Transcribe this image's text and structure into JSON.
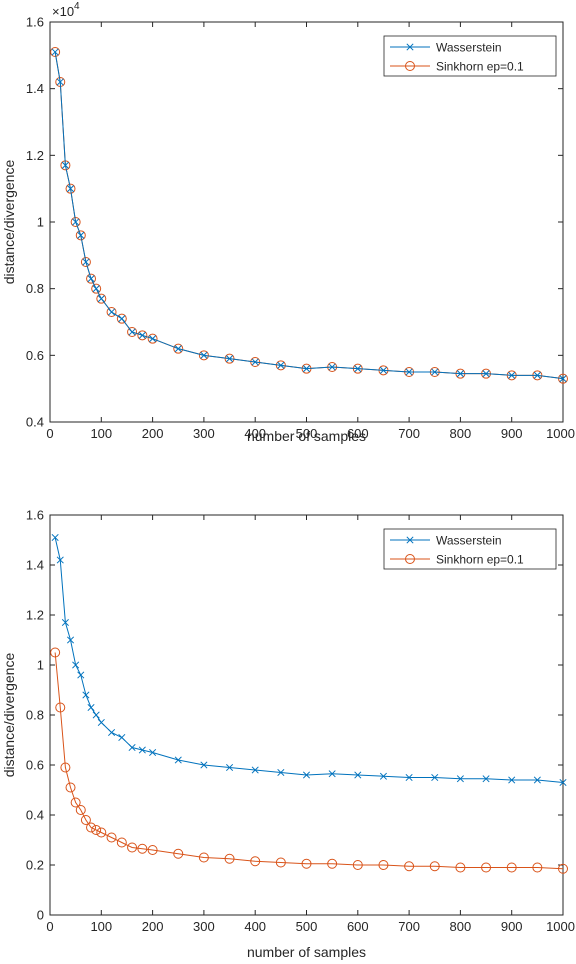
{
  "figure": {
    "legend_entries": [
      "Wasserstein",
      "Sinkhorn ep=0.1"
    ]
  },
  "chart_data": [
    {
      "type": "line",
      "xlabel": "number of samples",
      "ylabel": "distance/divergence",
      "y_exponent_label": "×10",
      "y_exponent": "4",
      "xlim": [
        0,
        1000
      ],
      "ylim": [
        0.4,
        1.6
      ],
      "x_ticks": [
        "0",
        "100",
        "200",
        "300",
        "400",
        "500",
        "600",
        "700",
        "800",
        "900",
        "1000"
      ],
      "y_ticks": [
        "0.4",
        "0.6",
        "0.8",
        "1",
        "1.2",
        "1.4",
        "1.6"
      ],
      "legend_position": "top-right",
      "grid": false,
      "x": [
        10,
        20,
        30,
        40,
        50,
        60,
        70,
        80,
        90,
        100,
        120,
        140,
        160,
        180,
        200,
        250,
        300,
        350,
        400,
        450,
        500,
        550,
        600,
        650,
        700,
        750,
        800,
        850,
        900,
        950,
        1000
      ],
      "series": [
        {
          "name": "Wasserstein",
          "color": "#0072BD",
          "marker": "x",
          "values": [
            1.51,
            1.42,
            1.17,
            1.1,
            1.0,
            0.96,
            0.88,
            0.83,
            0.8,
            0.77,
            0.73,
            0.71,
            0.67,
            0.66,
            0.65,
            0.62,
            0.6,
            0.59,
            0.58,
            0.57,
            0.56,
            0.565,
            0.56,
            0.555,
            0.55,
            0.55,
            0.545,
            0.545,
            0.54,
            0.54,
            0.53
          ]
        },
        {
          "name": "Sinkhorn ep=0.1",
          "color": "#D95319",
          "marker": "o",
          "values": [
            1.51,
            1.42,
            1.17,
            1.1,
            1.0,
            0.96,
            0.88,
            0.83,
            0.8,
            0.77,
            0.73,
            0.71,
            0.67,
            0.66,
            0.65,
            0.62,
            0.6,
            0.59,
            0.58,
            0.57,
            0.56,
            0.565,
            0.56,
            0.555,
            0.55,
            0.55,
            0.545,
            0.545,
            0.54,
            0.54,
            0.53
          ]
        }
      ]
    },
    {
      "type": "line",
      "xlabel": "number of samples",
      "ylabel": "distance/divergence",
      "xlim": [
        0,
        1000
      ],
      "ylim": [
        0,
        1.6
      ],
      "x_ticks": [
        "0",
        "100",
        "200",
        "300",
        "400",
        "500",
        "600",
        "700",
        "800",
        "900",
        "1000"
      ],
      "y_ticks": [
        "0",
        "0.2",
        "0.4",
        "0.6",
        "0.8",
        "1",
        "1.2",
        "1.4",
        "1.6"
      ],
      "legend_position": "top-right",
      "grid": false,
      "x": [
        10,
        20,
        30,
        40,
        50,
        60,
        70,
        80,
        90,
        100,
        120,
        140,
        160,
        180,
        200,
        250,
        300,
        350,
        400,
        450,
        500,
        550,
        600,
        650,
        700,
        750,
        800,
        850,
        900,
        950,
        1000
      ],
      "series": [
        {
          "name": "Wasserstein",
          "color": "#0072BD",
          "marker": "x",
          "values": [
            1.51,
            1.42,
            1.17,
            1.1,
            1.0,
            0.96,
            0.88,
            0.83,
            0.8,
            0.77,
            0.73,
            0.71,
            0.67,
            0.66,
            0.65,
            0.62,
            0.6,
            0.59,
            0.58,
            0.57,
            0.56,
            0.565,
            0.56,
            0.555,
            0.55,
            0.55,
            0.545,
            0.545,
            0.54,
            0.54,
            0.53
          ]
        },
        {
          "name": "Sinkhorn ep=0.1",
          "color": "#D95319",
          "marker": "o",
          "values": [
            1.05,
            0.83,
            0.59,
            0.51,
            0.45,
            0.42,
            0.38,
            0.35,
            0.34,
            0.33,
            0.31,
            0.29,
            0.27,
            0.265,
            0.26,
            0.245,
            0.23,
            0.225,
            0.215,
            0.21,
            0.205,
            0.205,
            0.2,
            0.2,
            0.195,
            0.195,
            0.19,
            0.19,
            0.19,
            0.19,
            0.185
          ]
        }
      ]
    }
  ]
}
